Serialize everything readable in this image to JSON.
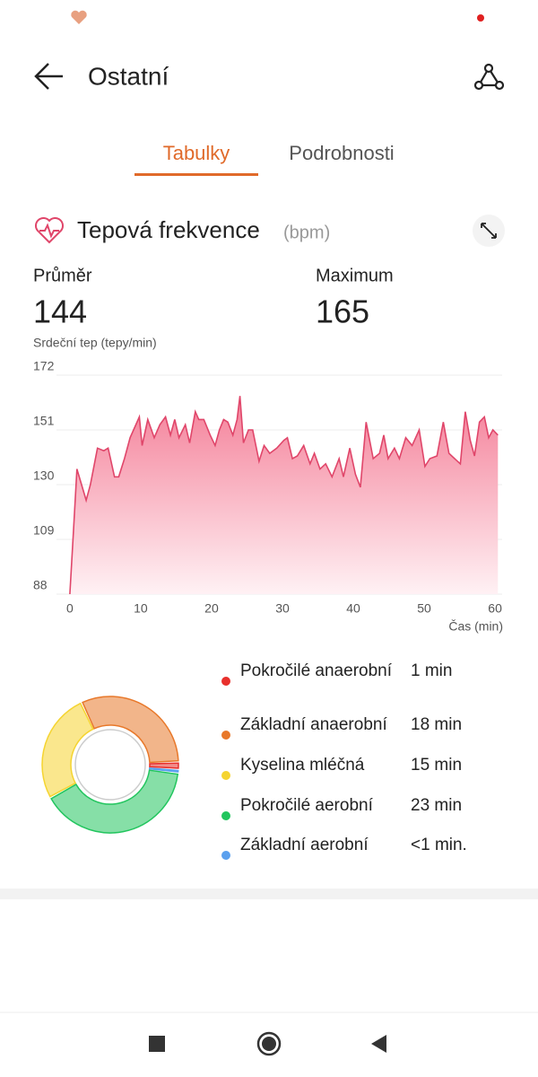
{
  "header": {
    "title": "Ostatní"
  },
  "tabs": [
    {
      "label": "Tabulky",
      "active": true
    },
    {
      "label": "Podrobnosti",
      "active": false
    }
  ],
  "section": {
    "title": "Tepová frekvence",
    "unit": "(bpm)"
  },
  "stats": [
    {
      "label": "Průměr",
      "value": 144
    },
    {
      "label": "Maximum",
      "value": 165
    }
  ],
  "chart_data": [
    {
      "type": "area",
      "ylabel": "Srdeční tep (tepy/min)",
      "xlabel": "Čas (min)",
      "x": [
        0,
        0.5,
        1.0,
        2.3,
        2.9,
        3.9,
        4.8,
        5.4,
        6.3,
        6.9,
        7.7,
        8.5,
        9.8,
        10.2,
        11.0,
        11.9,
        12.7,
        13.5,
        14.2,
        14.8,
        15.4,
        16.3,
        16.9,
        17.7,
        18.2,
        18.9,
        19.8,
        20.5,
        21.1,
        21.7,
        22.3,
        23.0,
        23.6,
        24.0,
        24.5,
        25.2,
        25.8,
        26.7,
        27.4,
        28.2,
        29.2,
        30.2,
        30.7,
        31.4,
        32.1,
        33.0,
        33.9,
        34.5,
        35.3,
        36.1,
        37.0,
        38.0,
        38.6,
        39.5,
        40.3,
        41.0,
        41.8,
        42.8,
        43.7,
        44.3,
        44.9,
        45.8,
        46.5,
        47.4,
        48.3,
        49.3,
        50.1,
        50.8,
        51.8,
        52.7,
        53.5,
        54.3,
        55.1,
        55.8,
        56.5,
        57.1,
        57.8,
        58.5,
        59.1,
        59.7,
        60.4
      ],
      "series": [
        {
          "color": "#e0466a",
          "values": [
            88,
            112,
            136,
            124,
            130,
            144,
            143,
            144,
            133,
            133,
            140,
            148,
            156,
            145,
            155,
            148,
            153,
            156,
            149,
            155,
            148,
            153,
            146,
            158,
            155,
            155,
            149,
            145,
            151,
            155,
            154,
            149,
            155,
            164,
            146,
            151,
            151,
            139,
            145,
            142,
            144,
            147,
            148,
            140,
            141,
            145,
            138,
            142,
            136,
            138,
            133,
            140,
            133,
            144,
            134,
            129,
            154,
            140,
            142,
            149,
            140,
            144,
            140,
            148,
            145,
            151,
            137,
            140,
            141,
            154,
            142,
            140,
            138,
            158,
            147,
            141,
            154,
            156,
            148,
            151,
            149
          ]
        }
      ],
      "xlim": [
        -1,
        61
      ],
      "xticks": [
        0,
        10,
        20,
        30,
        40,
        50,
        60
      ],
      "ylim": [
        88,
        172
      ],
      "yticks": [
        88,
        109,
        130,
        151,
        172
      ],
      "grid": true
    },
    {
      "type": "donut",
      "categories": [
        "Pokročilé anaerobní",
        "Základní anaerobní",
        "Kyselina mléčná",
        "Pokročilé aerobní",
        "Základní aerobní"
      ],
      "values": [
        1,
        18,
        15,
        23,
        0.5
      ],
      "value_labels": [
        "1 min",
        "18 min",
        "15 min",
        "23 min",
        "<1 min."
      ],
      "colors": [
        "#e8302c",
        "#e8782a",
        "#f5d430",
        "#22c55e",
        "#5aa0ee"
      ]
    }
  ]
}
